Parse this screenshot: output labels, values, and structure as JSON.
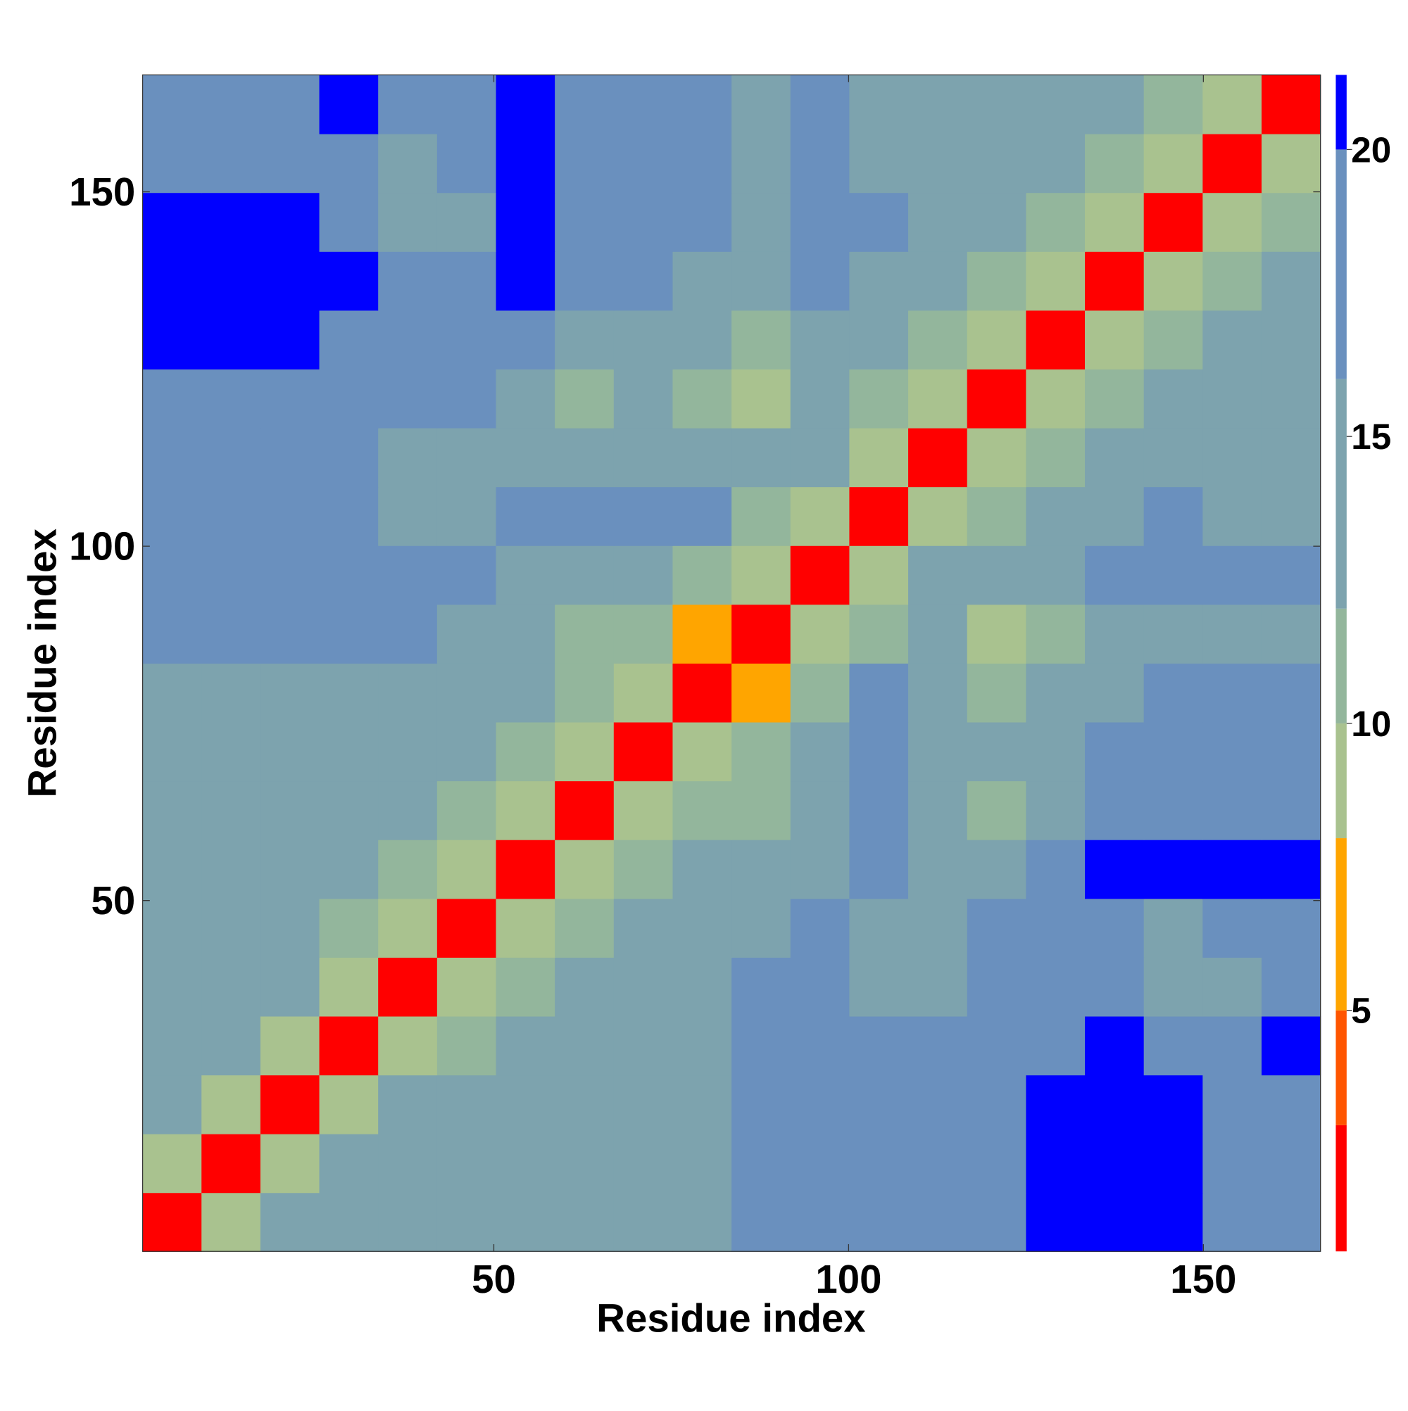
{
  "chart_data": {
    "type": "heatmap",
    "xlabel": "Residue index",
    "ylabel": "Residue index",
    "bins": [
      0.5,
      8.8,
      17.1,
      25.4,
      33.7,
      42,
      50.3,
      58.6,
      66.9,
      75.2,
      83.5,
      91.8,
      100.1,
      108.4,
      116.7,
      125,
      133.3,
      141.6,
      149.9,
      158.2,
      166.5
    ],
    "xlim": [
      0.5,
      166.5
    ],
    "ylim": [
      0.5,
      166.5
    ],
    "xticks": [
      50,
      100,
      150
    ],
    "yticks": [
      50,
      100,
      150
    ],
    "zlim": [
      0.8,
      21.3
    ],
    "zticks": [
      5,
      10,
      15,
      20
    ],
    "colorscale": [
      [
        3,
        "#ff0000"
      ],
      [
        5,
        "#ff5500"
      ],
      [
        8,
        "#ffa500"
      ],
      [
        10,
        "#a9c28f"
      ],
      [
        12,
        "#93b69c"
      ],
      [
        16,
        "#7da3ae"
      ],
      [
        20,
        "#6a90be"
      ],
      [
        21.3,
        "#0000ff"
      ]
    ],
    "z": [
      [
        3,
        9,
        13,
        14,
        14,
        15,
        14,
        15,
        16,
        16,
        17,
        18,
        18,
        19,
        18,
        21,
        21,
        21,
        19,
        18
      ],
      [
        9,
        3,
        9,
        13,
        14,
        15,
        15,
        15,
        16,
        15,
        17,
        18,
        18,
        19,
        18,
        21,
        21,
        21,
        19,
        19
      ],
      [
        13,
        9,
        3,
        9,
        13,
        14,
        15,
        15,
        16,
        16,
        17,
        18,
        17,
        18,
        18,
        21,
        21,
        21,
        19,
        19
      ],
      [
        14,
        13,
        9,
        3,
        9,
        12,
        14,
        15,
        15,
        16,
        17,
        18,
        17,
        17,
        18,
        19,
        21,
        18,
        18,
        21
      ],
      [
        14,
        14,
        13,
        9,
        3,
        9,
        12,
        14,
        15,
        15,
        17,
        18,
        16,
        15,
        17,
        19,
        17,
        15,
        16,
        19
      ],
      [
        15,
        15,
        14,
        12,
        9,
        3,
        9,
        12,
        14,
        14,
        16,
        18,
        16,
        15,
        17,
        19,
        17,
        16,
        17,
        19
      ],
      [
        14,
        15,
        15,
        14,
        12,
        9,
        3,
        9,
        11,
        13,
        13,
        16,
        19,
        16,
        15,
        19,
        21,
        21,
        21,
        21
      ],
      [
        15,
        15,
        15,
        15,
        14,
        12,
        9,
        3,
        9,
        12,
        12,
        15,
        17,
        14,
        12,
        16,
        17,
        18,
        18,
        18
      ],
      [
        16,
        16,
        16,
        15,
        15,
        14,
        11,
        9,
        3,
        9,
        11,
        14,
        17,
        14,
        13,
        15,
        17,
        18,
        18,
        19
      ],
      [
        16,
        15,
        16,
        16,
        15,
        14,
        13,
        12,
        9,
        3,
        8,
        11,
        18,
        16,
        12,
        14,
        16,
        17,
        17,
        17
      ],
      [
        17,
        17,
        17,
        17,
        17,
        16,
        13,
        12,
        11,
        8,
        3,
        9,
        12,
        13,
        10,
        12,
        15,
        16,
        16,
        16
      ],
      [
        18,
        18,
        18,
        18,
        18,
        18,
        16,
        15,
        14,
        11,
        9,
        3,
        9,
        13,
        15,
        16,
        17,
        19,
        19,
        19
      ],
      [
        18,
        18,
        17,
        17,
        16,
        16,
        19,
        17,
        17,
        18,
        12,
        9,
        3,
        9,
        11,
        14,
        15,
        19,
        15,
        15
      ],
      [
        19,
        19,
        18,
        17,
        15,
        15,
        16,
        14,
        14,
        16,
        13,
        13,
        9,
        3,
        9,
        11,
        13,
        16,
        13,
        14
      ],
      [
        18,
        18,
        18,
        18,
        17,
        17,
        15,
        12,
        13,
        12,
        10,
        15,
        11,
        9,
        3,
        9,
        11,
        14,
        15,
        15
      ],
      [
        21,
        21,
        21,
        19,
        19,
        19,
        19,
        16,
        15,
        14,
        12,
        16,
        14,
        11,
        9,
        3,
        9,
        12,
        14,
        16
      ],
      [
        21,
        21,
        21,
        21,
        17,
        17,
        21,
        17,
        17,
        16,
        15,
        17,
        15,
        13,
        11,
        9,
        3,
        9,
        12,
        14
      ],
      [
        21,
        21,
        21,
        18,
        15,
        16,
        21,
        18,
        18,
        17,
        16,
        19,
        19,
        16,
        14,
        12,
        9,
        3,
        9,
        12
      ],
      [
        19,
        19,
        19,
        18,
        16,
        17,
        21,
        18,
        18,
        17,
        16,
        19,
        15,
        13,
        15,
        14,
        12,
        9,
        3,
        9
      ],
      [
        18,
        19,
        19,
        21,
        19,
        19,
        21,
        18,
        19,
        17,
        16,
        19,
        15,
        14,
        15,
        16,
        14,
        12,
        9,
        3
      ]
    ]
  }
}
